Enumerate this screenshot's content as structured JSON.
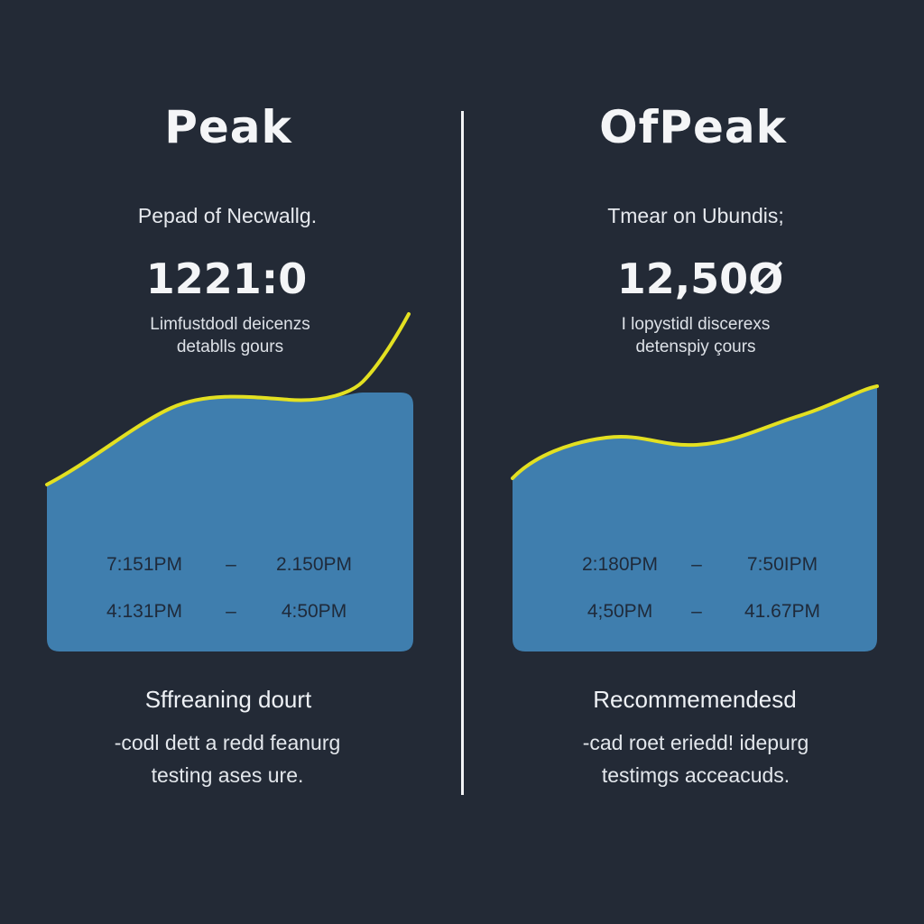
{
  "colors": {
    "background": "#232a36",
    "area_fill": "#3f7eae",
    "line": "#e3e021",
    "text": "#f2f4f7",
    "time_text": "#1f2a3a"
  },
  "left": {
    "title": "Peak",
    "subtitle": "Pepad of Necwallg.",
    "value": "1221:0",
    "desc_line1": "Limfustdodl deicenzs",
    "desc_line2": "detablls gours",
    "times": [
      {
        "start": "7:151PM",
        "sep": "–",
        "end": "2.150PM"
      },
      {
        "start": "4:131PM",
        "sep": "–",
        "end": "4:50PM"
      }
    ],
    "section_heading": "Sffreaning dourt",
    "section_line1": "-codl dett a redd feanurg",
    "section_line2": "testing ases ure."
  },
  "right": {
    "title": "OfPeak",
    "subtitle": "Tmear on Ubundis;",
    "value": "12,50Ø",
    "desc_line1": "I lopystidl discerexs",
    "desc_line2": "detenspiy çours",
    "times": [
      {
        "start": "2:180PM",
        "sep": "–",
        "end": "7:50IPM"
      },
      {
        "start": "4;50PM",
        "sep": "–",
        "end": "41.67PM"
      }
    ],
    "section_heading": "Recommemendesd",
    "section_line1": "-cad roet eriedd! idepurg",
    "section_line2": "testimgs acceacuds."
  }
}
